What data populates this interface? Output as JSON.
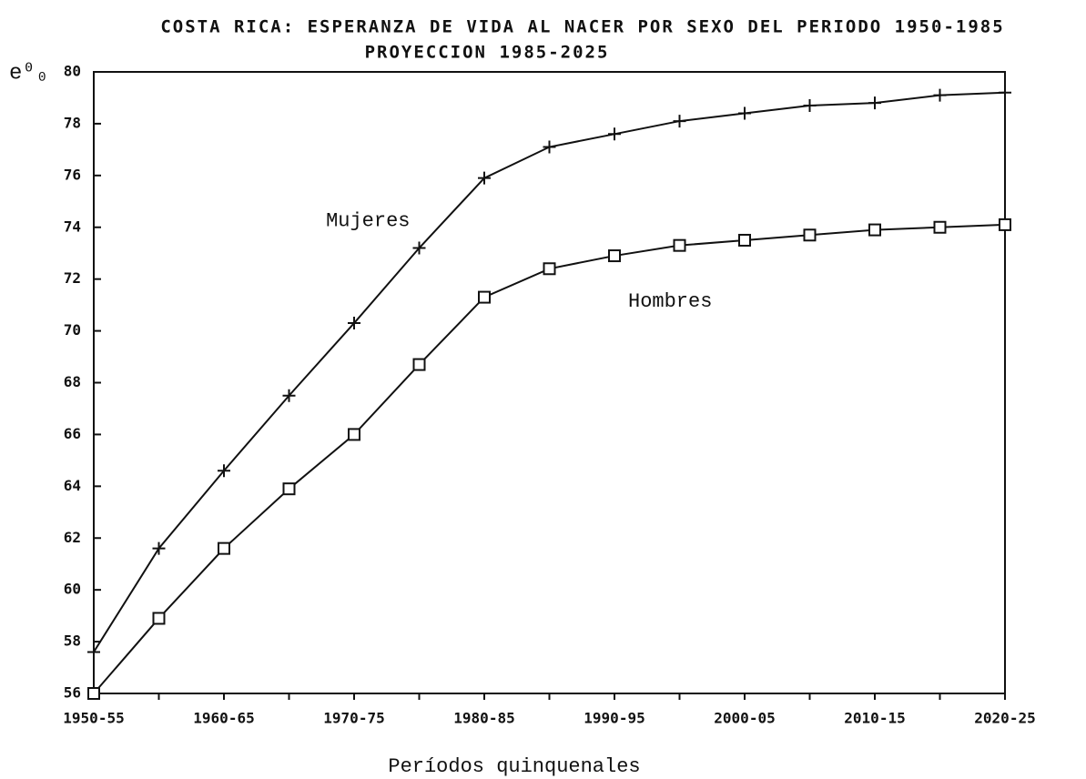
{
  "chart_data": {
    "type": "line",
    "title": "COSTA RICA: ESPERANZA DE VIDA AL NACER POR SEXO DEL PERIODO 1950-1985",
    "subtitle": "PROYECCION 1985-2025",
    "y_label": "e⁰₀",
    "x_label": "Períodos quinquenales",
    "categories": [
      "1950-55",
      null,
      "1960-65",
      null,
      "1970-75",
      null,
      "1980-85",
      null,
      "1990-95",
      null,
      "2000-05",
      null,
      "2010-15",
      null,
      "2020-25"
    ],
    "series": [
      {
        "name": "Mujeres",
        "color": "#111111",
        "marker": "plus",
        "values": [
          57.6,
          61.6,
          64.6,
          67.5,
          70.3,
          73.2,
          75.9,
          77.1,
          77.6,
          78.1,
          78.4,
          78.7,
          78.8,
          79.1,
          79.2
        ]
      },
      {
        "name": "Hombres",
        "color": "#111111",
        "marker": "square",
        "values": [
          56.0,
          58.9,
          61.6,
          63.9,
          66.0,
          68.7,
          71.3,
          72.4,
          72.9,
          73.3,
          73.5,
          73.7,
          73.9,
          74.0,
          74.1
        ]
      }
    ],
    "ylim": [
      56,
      80
    ],
    "yticks": [
      56,
      58,
      60,
      62,
      64,
      66,
      68,
      70,
      72,
      74,
      76,
      78,
      80
    ],
    "grid": false
  }
}
